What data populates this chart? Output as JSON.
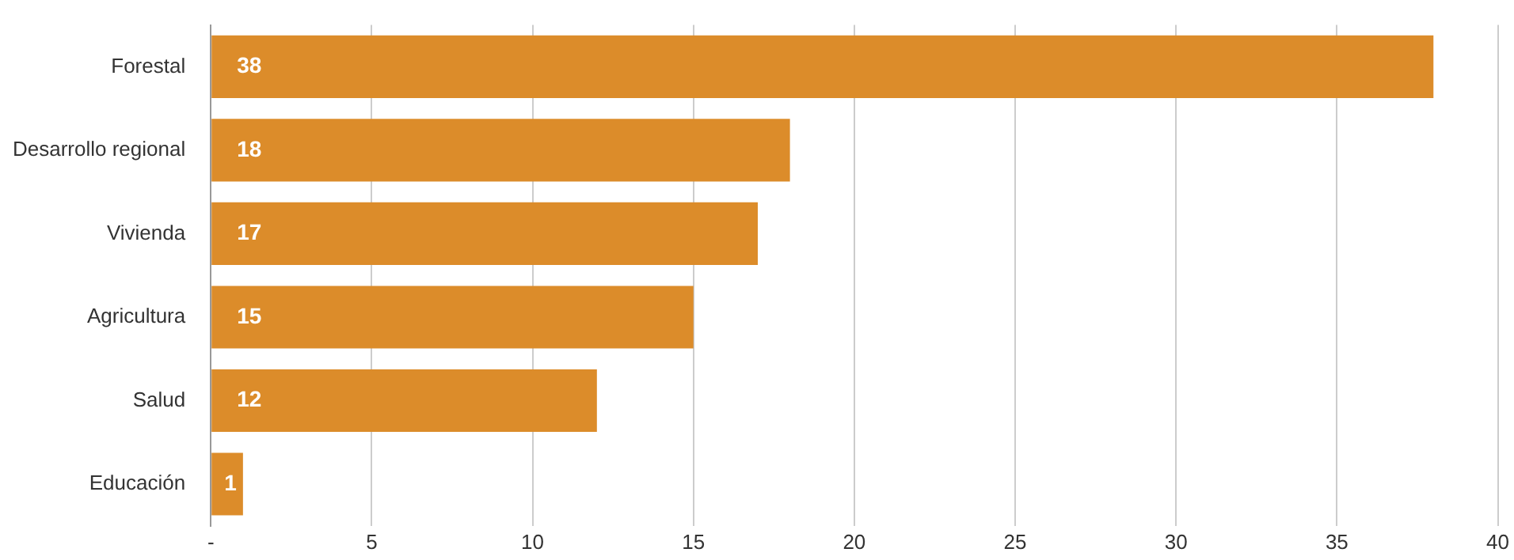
{
  "chart_data": {
    "type": "bar",
    "orientation": "horizontal",
    "categories": [
      "Forestal",
      "Desarrollo regional",
      "Vivienda",
      "Agricultura",
      "Salud",
      "Educación"
    ],
    "values": [
      38,
      18,
      17,
      15,
      12,
      1
    ],
    "color": "#dc8c2a",
    "xlim": [
      0,
      40
    ],
    "xticks": [
      {
        "value": 0,
        "label": "-"
      },
      5,
      10,
      15,
      20,
      25,
      30,
      35,
      40
    ],
    "grid": "x",
    "data_labels": true,
    "legend": false
  }
}
